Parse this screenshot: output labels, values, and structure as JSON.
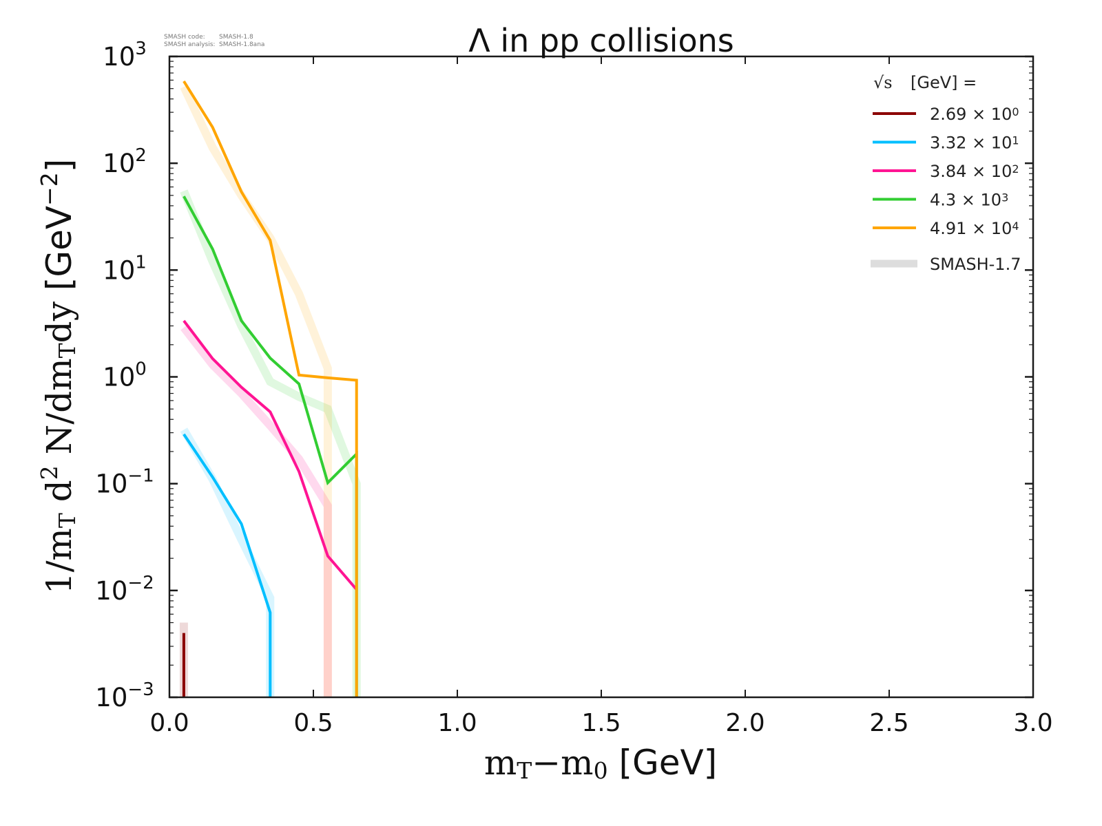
{
  "chart_data": {
    "type": "line",
    "title": "Λ in pp collisions",
    "annotation": {
      "line1_label": "SMASH code:",
      "line1_value": "SMASH-1.8",
      "line2_label": "SMASH analysis:",
      "line2_value": "SMASH-1.8ana"
    },
    "xlabel": {
      "main1": "m",
      "sub1": "T",
      "mid": "−m",
      "sub2": "0",
      "unit": " [GeV]"
    },
    "ylabel": {
      "p1": "1/m",
      "s1": "T",
      "p2": " d",
      "sup": "2",
      "p3": " N/dm",
      "s2": "T",
      "p4": "dy ",
      "unit": "[GeV",
      "unit_sup": "−2",
      "unit_end": "]"
    },
    "xlim": [
      0.0,
      3.0
    ],
    "ylim": [
      0.001,
      1000
    ],
    "yscale": "log",
    "xticks": [
      "0.0",
      "0.5",
      "1.0",
      "1.5",
      "2.0",
      "2.5",
      "3.0"
    ],
    "xtick_values": [
      0.0,
      0.5,
      1.0,
      1.5,
      2.0,
      2.5,
      3.0
    ],
    "yticks": [
      {
        "base": "10",
        "exp": "3",
        "value": 1000
      },
      {
        "base": "10",
        "exp": "2",
        "value": 100
      },
      {
        "base": "10",
        "exp": "1",
        "value": 10
      },
      {
        "base": "10",
        "exp": "0",
        "value": 1
      },
      {
        "base": "10",
        "exp": "−1",
        "value": 0.1
      },
      {
        "base": "10",
        "exp": "−2",
        "value": 0.01
      },
      {
        "base": "10",
        "exp": "−3",
        "value": 0.001
      }
    ],
    "legend": {
      "title_sqrt": "√s",
      "title_rest": "[GeV] =",
      "placement": "top-right",
      "entries": [
        {
          "mantissa": "2.69",
          "times": "×",
          "base": "10",
          "exp": "0",
          "color": "#8b0000"
        },
        {
          "mantissa": "3.32",
          "times": "×",
          "base": "10",
          "exp": "1",
          "color": "#00bfff"
        },
        {
          "mantissa": "3.84",
          "times": "×",
          "base": "10",
          "exp": "2",
          "color": "#ff1493"
        },
        {
          "mantissa": "4.3",
          "times": "×",
          "base": "10",
          "exp": "3",
          "color": "#32cd32"
        },
        {
          "mantissa": "4.91",
          "times": "×",
          "base": "10",
          "exp": "4",
          "color": "#ffa500"
        }
      ],
      "reference_label": "SMASH-1.7",
      "reference_color": "#dddddd"
    },
    "series": [
      {
        "name": "2.69 × 10^0 GeV",
        "color": "#8b0000",
        "x": [
          0.05,
          0.05
        ],
        "y": [
          0.004,
          0.001
        ],
        "reference_x": [
          0.05,
          0.05
        ],
        "reference_y": [
          0.005,
          0.001
        ]
      },
      {
        "name": "3.32 × 10^1 GeV",
        "color": "#00bfff",
        "x": [
          0.05,
          0.15,
          0.25,
          0.35,
          0.35
        ],
        "y": [
          0.29,
          0.115,
          0.042,
          0.0062,
          0.001
        ],
        "reference_x": [
          0.05,
          0.15,
          0.25,
          0.35,
          0.35
        ],
        "reference_y": [
          0.32,
          0.11,
          0.03,
          0.0085,
          0.001
        ]
      },
      {
        "name": "3.84 × 10^2 GeV",
        "color": "#ff1493",
        "x": [
          0.05,
          0.15,
          0.25,
          0.35,
          0.45,
          0.55,
          0.65
        ],
        "y": [
          3.35,
          1.48,
          0.8,
          0.47,
          0.13,
          0.021,
          0.0102
        ],
        "reference_x": [
          0.05,
          0.15,
          0.25,
          0.35,
          0.45,
          0.55,
          0.55
        ],
        "reference_y": [
          2.9,
          1.3,
          0.7,
          0.35,
          0.17,
          0.062,
          0.001
        ]
      },
      {
        "name": "4.3 × 10^3 GeV",
        "color": "#32cd32",
        "x": [
          0.05,
          0.15,
          0.25,
          0.35,
          0.45,
          0.55,
          0.65,
          0.65
        ],
        "y": [
          49,
          15.7,
          3.35,
          1.5,
          0.86,
          0.102,
          0.19,
          0.001
        ],
        "reference_x": [
          0.05,
          0.15,
          0.25,
          0.35,
          0.45,
          0.55,
          0.65,
          0.65
        ],
        "reference_y": [
          55,
          12,
          3.0,
          0.9,
          0.65,
          0.5,
          0.1,
          0.001
        ]
      },
      {
        "name": "4.91 × 10^4 GeV",
        "color": "#ffa500",
        "x": [
          0.05,
          0.15,
          0.25,
          0.35,
          0.45,
          0.55,
          0.65,
          0.65
        ],
        "y": [
          586,
          217,
          54,
          19,
          1.04,
          0.98,
          0.93,
          0.001
        ],
        "reference_x": [
          0.05,
          0.15,
          0.25,
          0.35,
          0.45,
          0.55,
          0.55
        ],
        "reference_y": [
          520,
          140,
          50,
          20,
          6,
          1.2,
          0.001
        ]
      }
    ],
    "grid": false
  }
}
